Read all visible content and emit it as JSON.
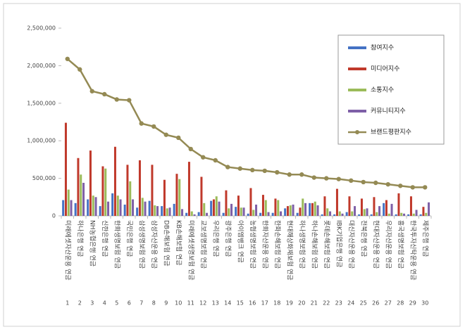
{
  "chart_data": {
    "type": "bar-line",
    "categories": [
      "미래에셋자산운용 연금",
      "하나은행 연금",
      "NH농협은행 연금",
      "신한은행 연금",
      "한화생명보험 연금",
      "국민은행 연금",
      "삼성생명보험 연금",
      "삼성자산운용 연금",
      "DB손해보험 연금",
      "KB손해보험 연금",
      "미래에셋생명보험 연금",
      "교보생명보험 연금",
      "우리은행 연금",
      "광주은행 연금",
      "아이엠뱅크 연금",
      "농협생명보험 연금",
      "한화자산운용 연금",
      "한화손해보험 연금",
      "현대해상화재보험 연금",
      "하나생명보험 연금",
      "하나손해보험 연금",
      "롯데손해보험 연금",
      "IBK기업은행 연금",
      "대신자산운용 연금",
      "전북은행 연금",
      "현대자산운용 연금",
      "우리자산운용 연금",
      "흥국생명보험 연금",
      "한국투자신탁운용 연금",
      "제주은행 연금"
    ],
    "category_numbers": [
      "1",
      "2",
      "3",
      "4",
      "5",
      "6",
      "7",
      "8",
      "9",
      "10",
      "11",
      "12",
      "13",
      "14",
      "15",
      "16",
      "17",
      "18",
      "19",
      "20",
      "21",
      "22",
      "23",
      "24",
      "25",
      "26",
      "27",
      "28",
      "29",
      "30"
    ],
    "series": [
      {
        "name": "참여지수",
        "color": "#4472c4",
        "kind": "bar",
        "values": [
          210000,
          170000,
          220000,
          130000,
          300000,
          150000,
          110000,
          200000,
          130000,
          160000,
          40000,
          50000,
          200000,
          40000,
          120000,
          30000,
          40000,
          40000,
          100000,
          40000,
          170000,
          20000,
          20000,
          50000,
          20000,
          20000,
          170000,
          20000,
          20000,
          20000
        ]
      },
      {
        "name": "미디어지수",
        "color": "#c0392b",
        "kind": "bar",
        "values": [
          1240000,
          770000,
          870000,
          660000,
          920000,
          680000,
          740000,
          680000,
          480000,
          560000,
          720000,
          520000,
          220000,
          340000,
          270000,
          370000,
          280000,
          230000,
          130000,
          110000,
          170000,
          260000,
          360000,
          260000,
          230000,
          250000,
          210000,
          300000,
          260000,
          120000
        ]
      },
      {
        "name": "소통지수",
        "color": "#9bbb59",
        "kind": "bar",
        "values": [
          350000,
          550000,
          270000,
          630000,
          270000,
          460000,
          240000,
          140000,
          100000,
          490000,
          60000,
          170000,
          260000,
          100000,
          110000,
          80000,
          210000,
          210000,
          140000,
          230000,
          190000,
          100000,
          60000,
          60000,
          90000,
          50000,
          30000,
          40000,
          30000,
          40000
        ]
      },
      {
        "name": "커뮤니티지수",
        "color": "#7e5fa7",
        "kind": "bar",
        "values": [
          210000,
          440000,
          250000,
          190000,
          220000,
          220000,
          190000,
          130000,
          110000,
          90000,
          20000,
          40000,
          190000,
          160000,
          110000,
          150000,
          50000,
          60000,
          150000,
          170000,
          140000,
          60000,
          30000,
          130000,
          100000,
          130000,
          160000,
          30000,
          80000,
          180000
        ]
      },
      {
        "name": "브랜드평판지수",
        "color": "#948a54",
        "kind": "line",
        "values": [
          2090000,
          1950000,
          1660000,
          1620000,
          1550000,
          1540000,
          1230000,
          1190000,
          1080000,
          1040000,
          890000,
          780000,
          740000,
          650000,
          630000,
          610000,
          600000,
          580000,
          550000,
          550000,
          510000,
          500000,
          490000,
          470000,
          450000,
          440000,
          420000,
          400000,
          380000,
          380000
        ]
      }
    ],
    "ylim": [
      0,
      2500000
    ],
    "yticks": [
      0,
      {
        "value": 500000,
        "label": "500,000"
      },
      {
        "value": 1000000,
        "label": "1,000,000"
      },
      {
        "value": 1500000,
        "label": "1,500,000"
      },
      {
        "value": 2000000,
        "label": "2,000,000"
      },
      {
        "value": 2500000,
        "label": "2,500,000"
      }
    ],
    "grid": false,
    "legend": "top-right"
  }
}
